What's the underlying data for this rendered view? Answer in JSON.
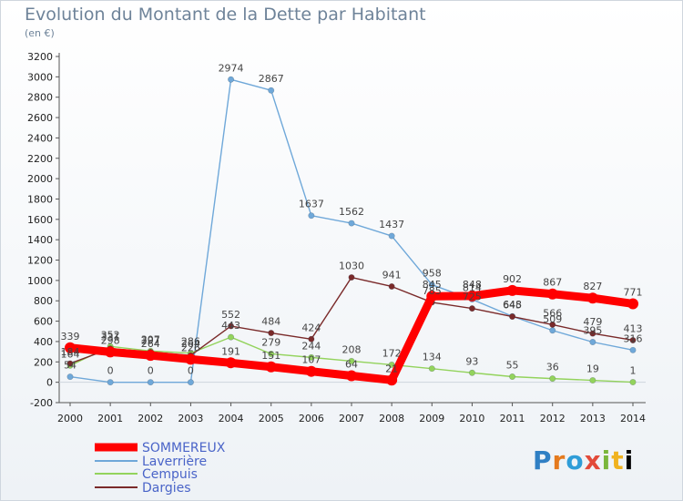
{
  "title": "Evolution du Montant de la Dette par Habitant",
  "unit": "(en €)",
  "logo": "Proxiti",
  "chart_data": {
    "type": "line",
    "title": "Evolution du Montant de la Dette par Habitant",
    "ylabel": "(en €)",
    "x": [
      "2000",
      "2001",
      "2002",
      "2003",
      "2004",
      "2005",
      "2006",
      "2007",
      "2008",
      "2009",
      "2010",
      "2011",
      "2012",
      "2013",
      "2014"
    ],
    "ylim": [
      -200,
      3200
    ],
    "yticks": [
      -200,
      0,
      200,
      400,
      600,
      800,
      1000,
      1200,
      1400,
      1600,
      1800,
      2000,
      2200,
      2400,
      2600,
      2800,
      3000,
      3200
    ],
    "grid": false,
    "legend": "bottom-left",
    "series": [
      {
        "name": "SOMMEREUX",
        "color": "#ff0000",
        "values": [
          339,
          298,
          264,
          226,
          191,
          151,
          107,
          64,
          21,
          845,
          848,
          902,
          867,
          827,
          771
        ]
      },
      {
        "name": "Laverrière",
        "color": "#6fa8d9",
        "values": [
          54,
          0,
          0,
          0,
          2974,
          2867,
          1637,
          1562,
          1437,
          958,
          814,
          648,
          509,
          395,
          316
        ]
      },
      {
        "name": "Cempuis",
        "color": "#93d35c",
        "values": [
          164,
          352,
          307,
          286,
          443,
          279,
          244,
          208,
          172,
          134,
          93,
          55,
          36,
          19,
          1
        ]
      },
      {
        "name": "Dargies",
        "color": "#7a2a2a",
        "values": [
          184,
          331,
          297,
          264,
          552,
          484,
          424,
          1030,
          941,
          785,
          725,
          645,
          566,
          479,
          413
        ]
      }
    ]
  }
}
